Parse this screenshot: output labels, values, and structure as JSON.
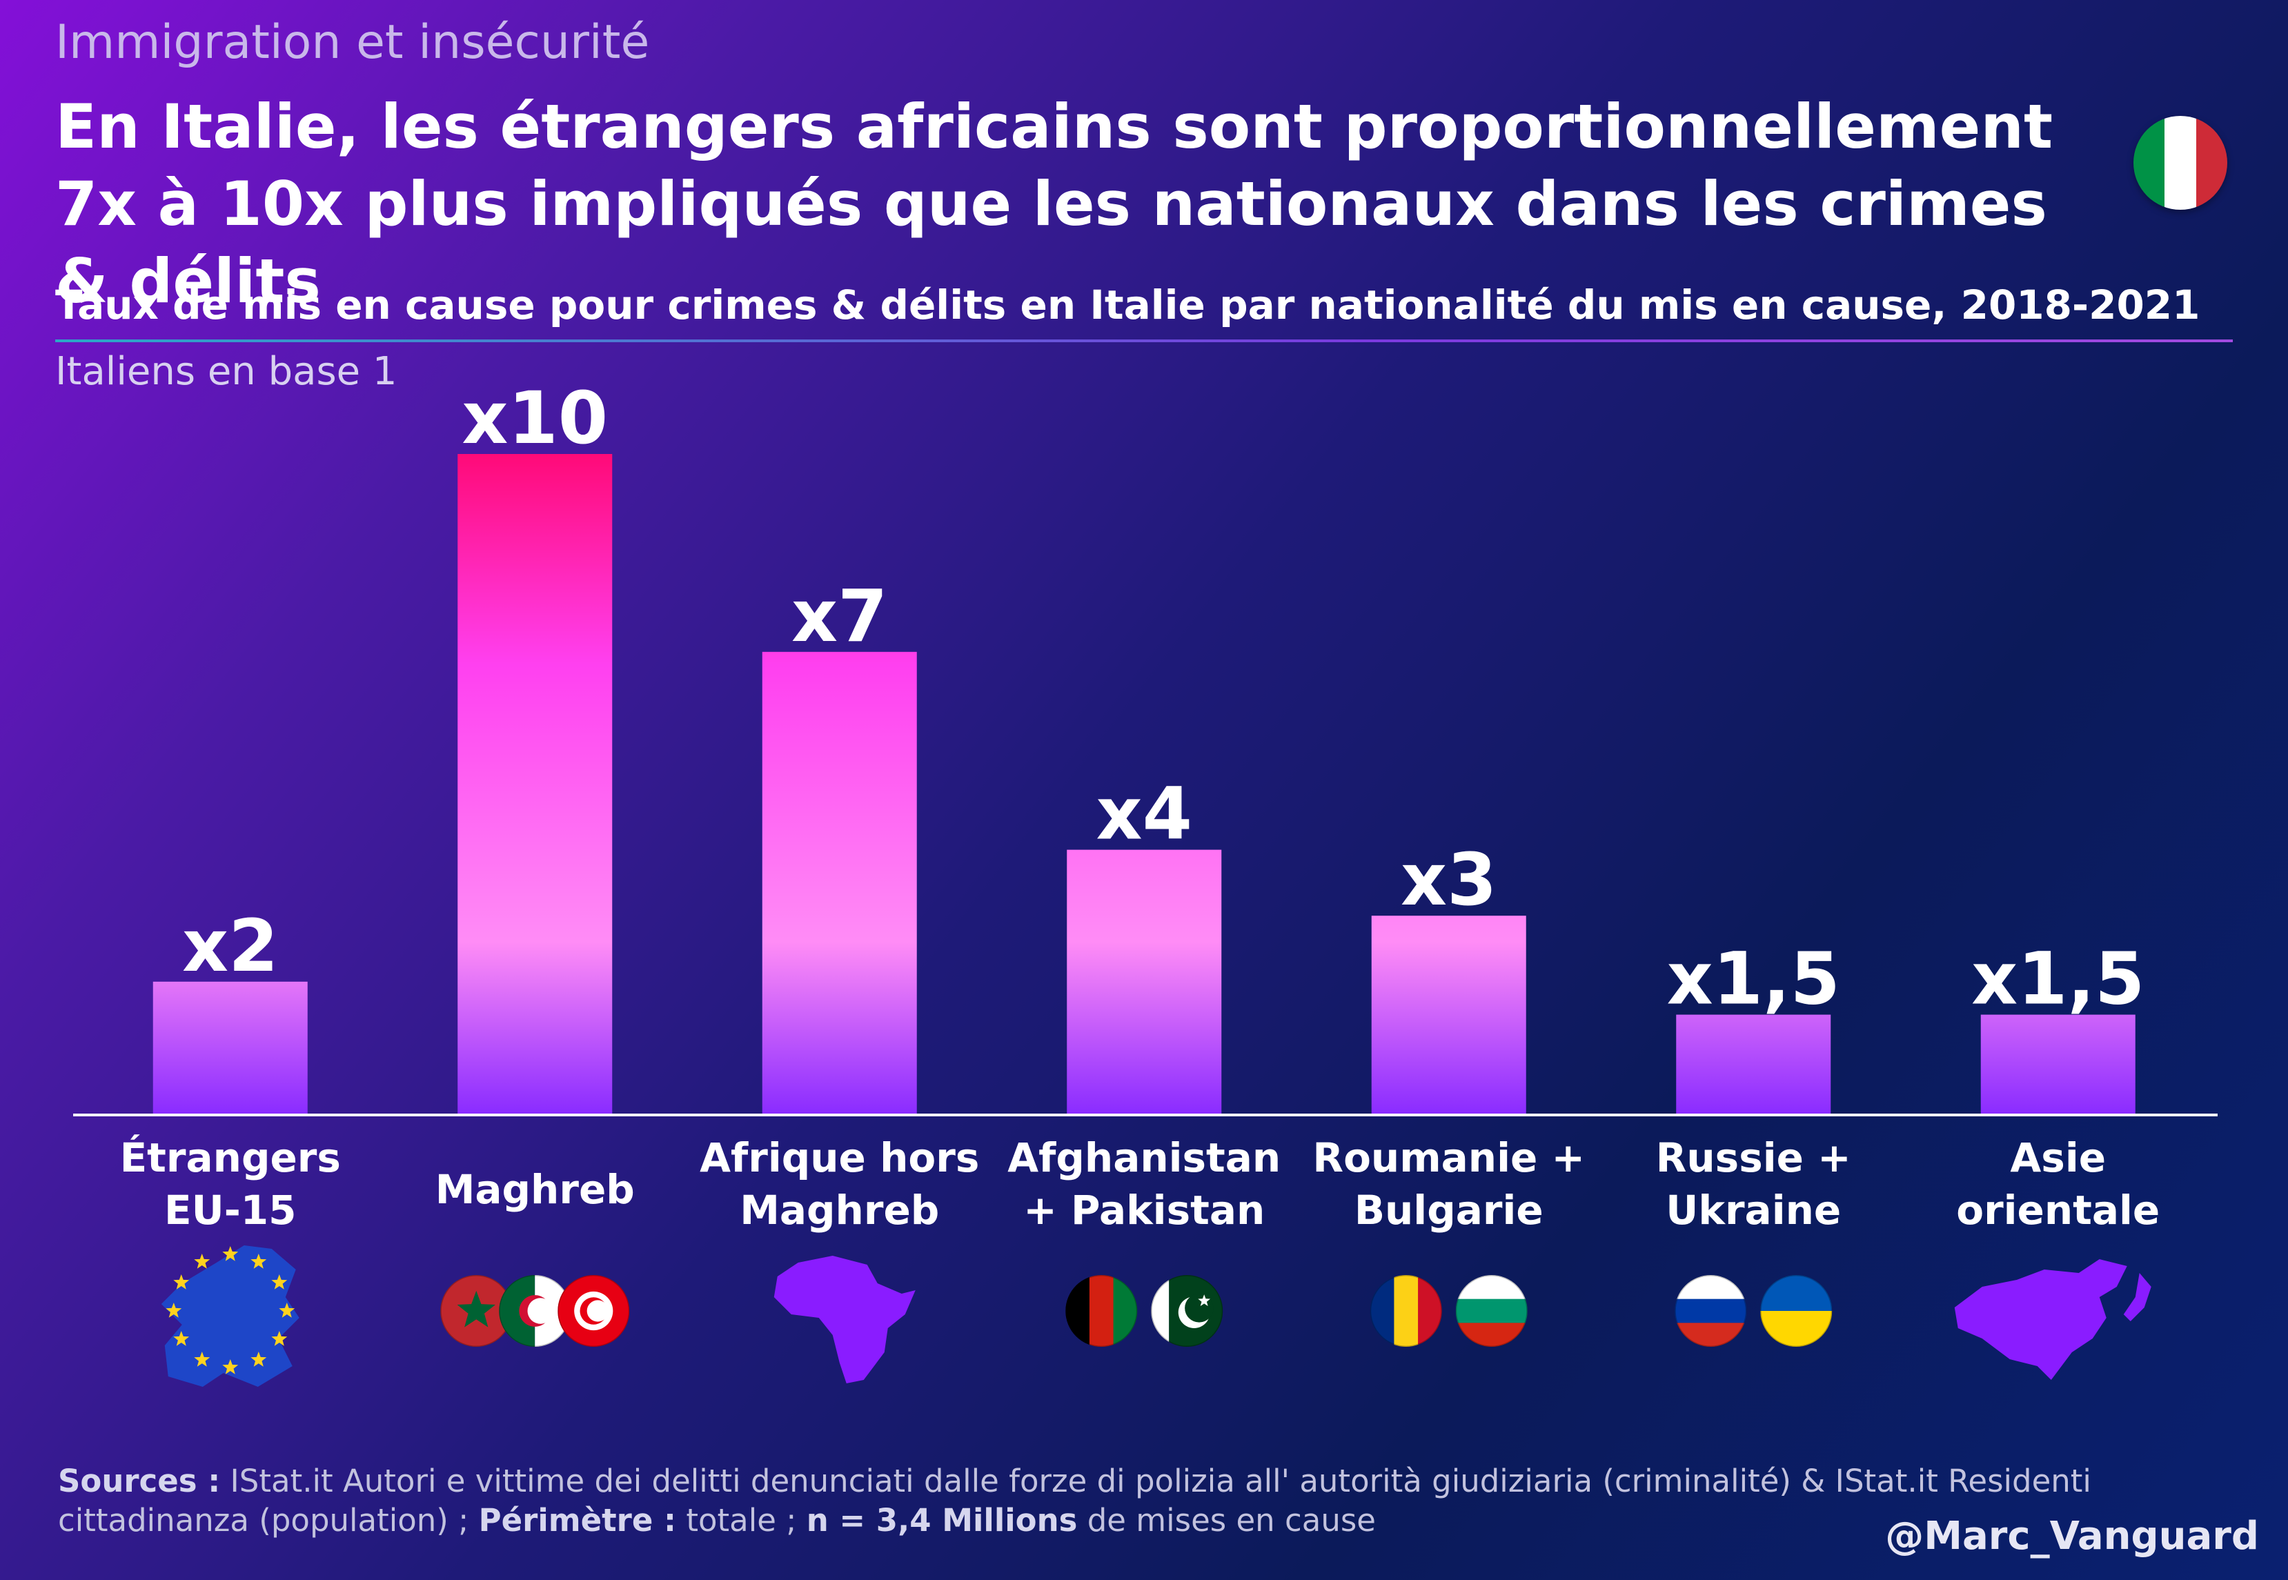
{
  "kicker": "Immigration et insécurité",
  "title": "En Italie, les étrangers africains sont proportionnellement 7x à 10x plus impliqués que les nationaux dans les crimes & délits",
  "subtitle": "Taux de mis en cause pour crimes & délits en Italie par nationalité du mis en cause, 2018-2021",
  "base_note": "Italiens en base 1",
  "colors": {
    "bar_top": "#ff0a78",
    "bar_mid": "#ff40f0",
    "bar_low": "#ff8cf6",
    "bar_bottom": "#8a2cff",
    "italy_flag": [
      "#009246",
      "#ffffff",
      "#ce2b37"
    ]
  },
  "chart_data": {
    "type": "bar",
    "categories": [
      [
        "Étrangers",
        "EU-15"
      ],
      [
        "Maghreb"
      ],
      [
        "Afrique hors",
        "Maghreb"
      ],
      [
        "Afghanistan",
        "+ Pakistan"
      ],
      [
        "Roumanie +",
        "Bulgarie"
      ],
      [
        "Russie +",
        "Ukraine"
      ],
      [
        "Asie",
        "orientale"
      ]
    ],
    "values": [
      2,
      10,
      7,
      4,
      3,
      1.5,
      1.5
    ],
    "data_labels": [
      "x2",
      "x10",
      "x7",
      "x4",
      "x3",
      "x1,5",
      "x1,5"
    ],
    "ylim": [
      0,
      10
    ],
    "grid": false,
    "legend": "none",
    "category_icons": [
      [
        "eu-map-icon"
      ],
      [
        "morocco-flag-icon",
        "algeria-flag-icon",
        "tunisia-flag-icon"
      ],
      [
        "africa-map-icon"
      ],
      [
        "afghanistan-flag-icon",
        "pakistan-flag-icon"
      ],
      [
        "romania-flag-icon",
        "bulgaria-flag-icon"
      ],
      [
        "russia-flag-icon",
        "ukraine-flag-icon"
      ],
      [
        "east-asia-map-icon"
      ]
    ]
  },
  "footer": {
    "sources_label": "Sources :",
    "sources_text": " IStat.it Autori e vittime dei delitti denunciati dalle forze di polizia all' autorità giudiziaria (criminalité) & IStat.it Residenti cittadinanza (population) ; ",
    "perimeter_label": "Périmètre :",
    "perimeter_text": " totale ; ",
    "n_label": "n = 3,4 Millions",
    "n_text": " de mises en cause"
  },
  "handle": "@Marc_Vanguard"
}
